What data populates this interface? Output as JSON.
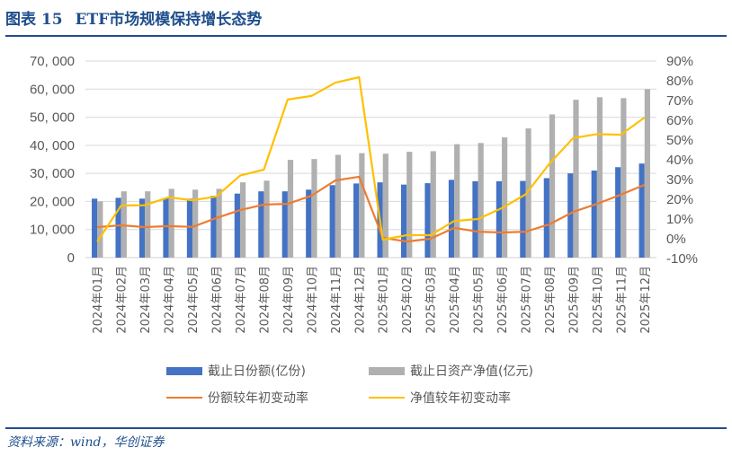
{
  "header": {
    "figure_label": "图表 15",
    "title": "ETF市场规模保持增长态势"
  },
  "footer": {
    "source": "资料来源：wind，华创证券"
  },
  "legend": {
    "items": [
      {
        "label": "截止日份额(亿份)",
        "type": "bar",
        "color": "#4472c4"
      },
      {
        "label": "截止日资产净值(亿元)",
        "type": "bar",
        "color": "#b0b0b0"
      },
      {
        "label": "份额较年初变动率",
        "type": "line",
        "color": "#ed7d31"
      },
      {
        "label": "净值较年初变动率",
        "type": "line",
        "color": "#ffc000"
      }
    ]
  },
  "colors": {
    "shares_bar": "#4472c4",
    "nav_bar": "#b0b0b0",
    "shares_change_line": "#ed7d31",
    "nav_change_line": "#ffc000",
    "gridline": "#d9d9d9",
    "title": "#1f4e8c"
  },
  "chart_data": {
    "type": "bar",
    "title": "ETF市场规模保持增长态势",
    "xlabel": "",
    "ylabel": "",
    "categories": [
      "2024年01月",
      "2024年02月",
      "2024年03月",
      "2024年04月",
      "2024年05月",
      "2024年06月",
      "2024年07月",
      "2024年08月",
      "2024年09月",
      "2024年10月",
      "2024年11月",
      "2024年12月",
      "2025年01月",
      "2025年02月",
      "2025年03月",
      "2025年04月",
      "2025年05月",
      "2025年06月",
      "2025年07月",
      "2025年08月",
      "2025年09月",
      "2025年10月",
      "2025年11月",
      "2025年12月"
    ],
    "series": [
      {
        "name": "截止日份额(亿份)",
        "type": "bar",
        "axis": "left",
        "color": "#4472c4",
        "values": [
          21000,
          21300,
          21000,
          21200,
          21000,
          22000,
          22800,
          23600,
          23600,
          24200,
          25800,
          26400,
          26800,
          26000,
          26500,
          27700,
          27200,
          27200,
          27300,
          28300,
          30000,
          31000,
          32200,
          33500
        ]
      },
      {
        "name": "截止日资产净值(亿元)",
        "type": "bar",
        "axis": "left",
        "color": "#b0b0b0",
        "values": [
          20000,
          23600,
          23600,
          24500,
          24200,
          24500,
          26800,
          27400,
          34800,
          35100,
          36600,
          37200,
          37000,
          37700,
          37900,
          40400,
          40800,
          42800,
          46000,
          51000,
          56200,
          57100,
          56800,
          60000
        ]
      },
      {
        "name": "份额较年初变动率",
        "type": "line",
        "axis": "right",
        "color": "#ed7d31",
        "values": [
          5.9,
          6.8,
          5.9,
          6.4,
          6.0,
          10.5,
          14.5,
          17.3,
          17.7,
          21.8,
          29.5,
          31.4,
          0.5,
          -1.4,
          0.0,
          5.5,
          3.6,
          3.2,
          3.6,
          7.3,
          13.6,
          17.7,
          22.3,
          27.3
        ]
      },
      {
        "name": "净值较年初变动率",
        "type": "line",
        "axis": "right",
        "color": "#ffc000",
        "values": [
          -1.4,
          16.8,
          17.0,
          21.0,
          19.5,
          21.4,
          32.0,
          35.0,
          70.5,
          72.3,
          79.0,
          81.8,
          -0.5,
          1.8,
          1.8,
          9.0,
          10.0,
          15.5,
          22.5,
          38.0,
          51.0,
          53.0,
          52.7,
          61.4
        ]
      }
    ],
    "left_axis": {
      "range": [
        0,
        70000
      ],
      "ticks": [
        "0",
        "10, 000",
        "20, 000",
        "30, 000",
        "40, 000",
        "50, 000",
        "60, 000",
        "70, 000"
      ]
    },
    "right_axis": {
      "range": [
        -10,
        90
      ],
      "unit": "%",
      "ticks": [
        "-10%",
        "0%",
        "10%",
        "20%",
        "30%",
        "40%",
        "50%",
        "60%",
        "70%",
        "80%",
        "90%"
      ]
    },
    "grid": true,
    "legend_position": "bottom"
  }
}
